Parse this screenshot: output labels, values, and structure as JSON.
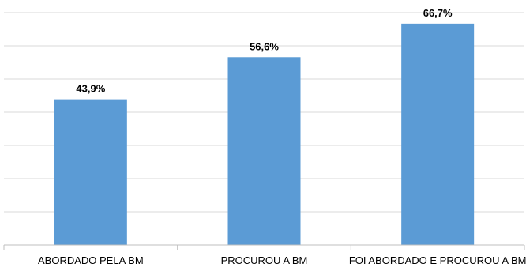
{
  "chart_data": {
    "type": "bar",
    "categories": [
      "ABORDADO PELA BM",
      "PROCUROU A BM",
      "FOI ABORDADO E PROCUROU A BM"
    ],
    "values": [
      43.9,
      56.6,
      66.7
    ],
    "value_labels": [
      "43,9%",
      "56,6%",
      "66,7%"
    ],
    "title": "",
    "xlabel": "",
    "ylabel": "",
    "ylim": [
      0,
      70
    ],
    "grid": true,
    "gridline_count": 7,
    "legend": "none",
    "bar_color": "#5b9bd5",
    "gridline_color": "#d9d9d9",
    "axis_color": "#bfbfbf"
  }
}
